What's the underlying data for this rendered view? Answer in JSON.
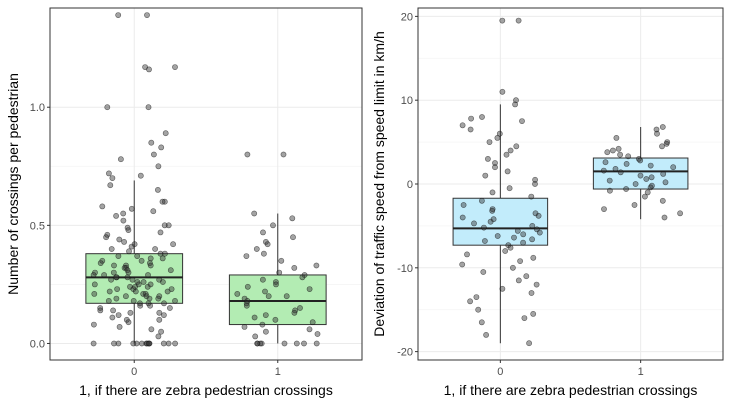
{
  "chart_data": [
    {
      "type": "boxplot",
      "xlabel": "1, if there are zebra pedestrian crossings",
      "ylabel": "Number of crossings per pedestrian",
      "categories": [
        "0",
        "1"
      ],
      "ylim": [
        -0.07,
        1.42
      ],
      "yticks": [
        0.0,
        0.5,
        1.0
      ],
      "ytick_labels": [
        "0.0",
        "0.5",
        "1.0"
      ],
      "grid": true,
      "box_color": "#b3ecb3",
      "point_color": "#333333",
      "boxes": [
        {
          "category": "0",
          "q1": 0.17,
          "median": 0.28,
          "q3": 0.38,
          "whisker_low": 0.0,
          "whisker_high": 0.69
        },
        {
          "category": "1",
          "q1": 0.08,
          "median": 0.18,
          "q3": 0.29,
          "whisker_low": 0.0,
          "whisker_high": 0.55
        }
      ],
      "points": [
        {
          "x": 0,
          "values": [
            1.39,
            1.39,
            1.17,
            1.17,
            1.16,
            1.0,
            1.0,
            0.89,
            0.85,
            0.83,
            0.8,
            0.78,
            0.75,
            0.72,
            0.71,
            0.7,
            0.67,
            0.65,
            0.6,
            0.6,
            0.58,
            0.57,
            0.56,
            0.55,
            0.54,
            0.52,
            0.5,
            0.5,
            0.49,
            0.48,
            0.47,
            0.46,
            0.45,
            0.44,
            0.43,
            0.42,
            0.42,
            0.41,
            0.4,
            0.4,
            0.39,
            0.38,
            0.38,
            0.37,
            0.37,
            0.36,
            0.36,
            0.35,
            0.35,
            0.34,
            0.34,
            0.33,
            0.33,
            0.33,
            0.32,
            0.32,
            0.31,
            0.31,
            0.3,
            0.3,
            0.3,
            0.29,
            0.29,
            0.29,
            0.28,
            0.28,
            0.28,
            0.27,
            0.27,
            0.27,
            0.26,
            0.26,
            0.26,
            0.25,
            0.25,
            0.25,
            0.24,
            0.24,
            0.24,
            0.23,
            0.23,
            0.23,
            0.22,
            0.22,
            0.22,
            0.21,
            0.21,
            0.21,
            0.2,
            0.2,
            0.2,
            0.19,
            0.19,
            0.19,
            0.18,
            0.18,
            0.18,
            0.17,
            0.17,
            0.17,
            0.16,
            0.16,
            0.15,
            0.15,
            0.14,
            0.14,
            0.13,
            0.13,
            0.12,
            0.12,
            0.11,
            0.1,
            0.1,
            0.09,
            0.08,
            0.07,
            0.06,
            0.05,
            0.03,
            0.0,
            0.0,
            0.0,
            0.0,
            0.0,
            0.0,
            0.0,
            0.0,
            0.0,
            0.0,
            0.0,
            0.0,
            0.0,
            0.0
          ]
        },
        {
          "x": 1,
          "values": [
            0.8,
            0.8,
            0.55,
            0.53,
            0.5,
            0.47,
            0.45,
            0.43,
            0.42,
            0.4,
            0.38,
            0.37,
            0.35,
            0.33,
            0.32,
            0.3,
            0.29,
            0.28,
            0.27,
            0.26,
            0.25,
            0.24,
            0.23,
            0.22,
            0.21,
            0.2,
            0.2,
            0.19,
            0.18,
            0.17,
            0.16,
            0.15,
            0.14,
            0.13,
            0.12,
            0.11,
            0.1,
            0.09,
            0.08,
            0.07,
            0.06,
            0.05,
            0.04,
            0.03,
            0.0,
            0.0,
            0.0,
            0.0,
            0.0,
            0.0,
            0.0,
            0.0
          ]
        }
      ]
    },
    {
      "type": "boxplot",
      "xlabel": "1, if there are zebra pedestrian crossings",
      "ylabel": "Deviation of traffic speed from speed limit in km/h",
      "categories": [
        "0",
        "1"
      ],
      "ylim": [
        -21,
        21
      ],
      "yticks": [
        -20,
        -10,
        0,
        10,
        20
      ],
      "ytick_labels": [
        "-20",
        "-10",
        "0",
        "10",
        "20"
      ],
      "grid": true,
      "box_color": "#c2ecfb",
      "point_color": "#333333",
      "boxes": [
        {
          "category": "0",
          "q1": -7.3,
          "median": -5.3,
          "q3": -1.7,
          "whisker_low": -19.0,
          "whisker_high": 9.5
        },
        {
          "category": "1",
          "q1": -0.6,
          "median": 1.5,
          "q3": 3.1,
          "whisker_low": -4.2,
          "whisker_high": 6.8
        }
      ],
      "points": [
        {
          "x": 0,
          "values": [
            19.5,
            19.5,
            11.0,
            10.0,
            9.5,
            8.0,
            7.8,
            7.5,
            7.0,
            6.5,
            6.0,
            5.5,
            5.0,
            4.5,
            4.0,
            3.5,
            3.0,
            2.5,
            2.0,
            1.5,
            1.0,
            0.5,
            0.0,
            -0.5,
            -1.0,
            -1.5,
            -2.0,
            -2.5,
            -3.0,
            -3.2,
            -3.5,
            -3.8,
            -4.0,
            -4.2,
            -4.5,
            -4.7,
            -5.0,
            -5.2,
            -5.4,
            -5.6,
            -5.8,
            -6.0,
            -6.2,
            -6.4,
            -6.6,
            -6.8,
            -7.0,
            -7.3,
            -7.6,
            -8.0,
            -8.4,
            -8.8,
            -9.2,
            -9.6,
            -10.0,
            -10.5,
            -11.0,
            -11.5,
            -12.0,
            -12.5,
            -13.0,
            -13.5,
            -14.0,
            -15.0,
            -15.5,
            -16.0,
            -16.5,
            -18.0,
            -19.0
          ]
        },
        {
          "x": 1,
          "values": [
            6.8,
            6.5,
            6.0,
            5.5,
            5.0,
            4.8,
            4.5,
            4.2,
            4.0,
            3.8,
            3.5,
            3.3,
            3.0,
            2.8,
            2.6,
            2.4,
            2.2,
            2.0,
            1.8,
            1.6,
            1.4,
            1.2,
            1.0,
            0.8,
            0.6,
            0.4,
            0.2,
            0.0,
            -0.2,
            -0.4,
            -0.6,
            -0.8,
            -1.0,
            -1.5,
            -2.0,
            -2.5,
            -3.0,
            -3.5,
            -4.0
          ]
        }
      ]
    }
  ]
}
